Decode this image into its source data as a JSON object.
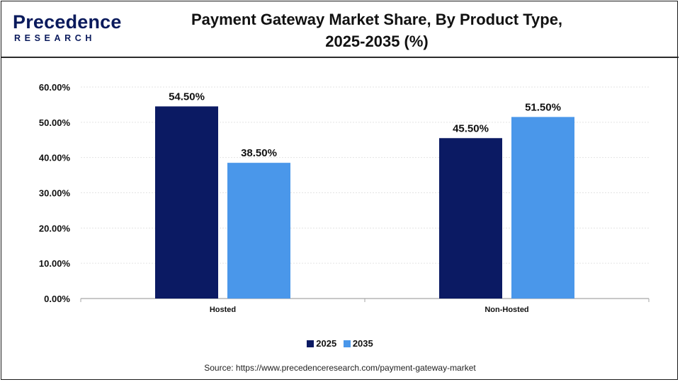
{
  "brand": {
    "name_top": "Precedence",
    "name_bottom": "RESEARCH"
  },
  "title_line1": "Payment Gateway Market Share, By Product Type,",
  "title_line2": "2025-2035 (%)",
  "source": "Source: https://www.precedenceresearch.com/payment-gateway-market",
  "chart_data": {
    "type": "bar",
    "title": "Payment Gateway Market Share, By Product Type, 2025-2035 (%)",
    "categories": [
      "Hosted",
      "Non-Hosted"
    ],
    "series": [
      {
        "name": "2025",
        "values": [
          54.5,
          45.5
        ],
        "color": "#0b1a63"
      },
      {
        "name": "2035",
        "values": [
          38.5,
          51.5
        ],
        "color": "#4a97ea"
      }
    ],
    "ylim": [
      0,
      60
    ],
    "yticks": [
      0,
      10,
      20,
      30,
      40,
      50,
      60
    ],
    "ytick_labels": [
      "0.00%",
      "10.00%",
      "20.00%",
      "30.00%",
      "40.00%",
      "50.00%",
      "60.00%"
    ],
    "value_labels": [
      [
        "54.50%",
        "45.50%"
      ],
      [
        "38.50%",
        "51.50%"
      ]
    ],
    "grid": true,
    "legend_position": "bottom"
  }
}
